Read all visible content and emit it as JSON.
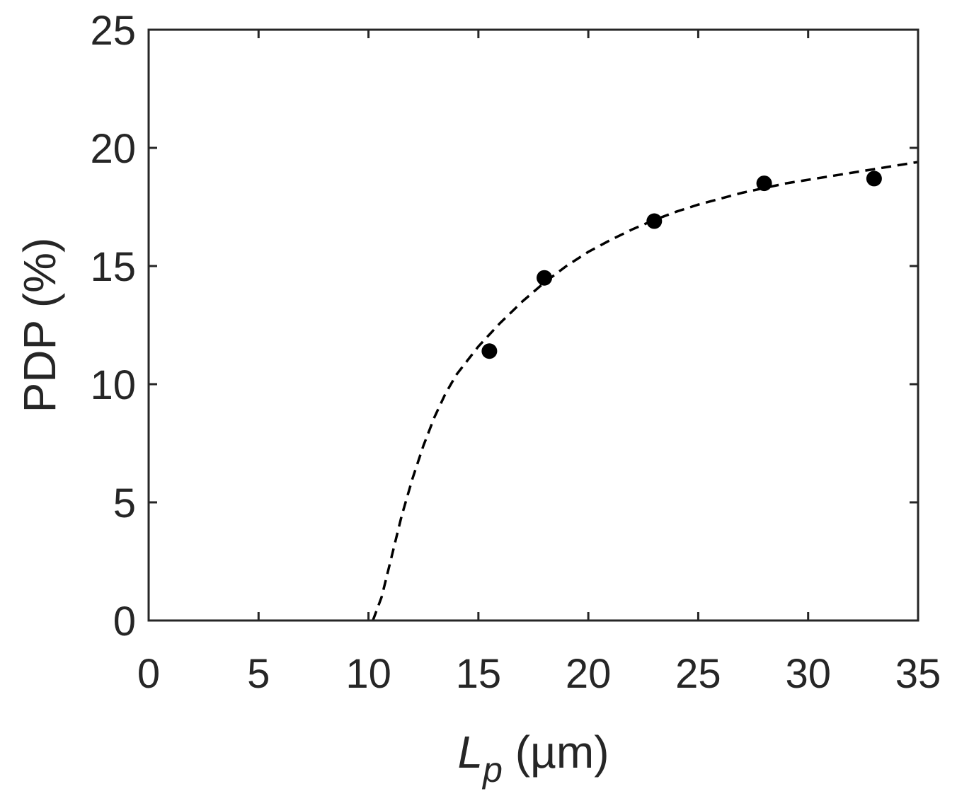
{
  "chart_data": {
    "type": "scatter",
    "xlabel_main": "L",
    "xlabel_sub": "p",
    "xlabel_unit": " (µm)",
    "ylabel": "PDP (%)",
    "xlim": [
      0,
      35
    ],
    "ylim": [
      0,
      25
    ],
    "xticks": [
      0,
      5,
      10,
      15,
      20,
      25,
      30,
      35
    ],
    "yticks": [
      0,
      5,
      10,
      15,
      20,
      25
    ],
    "grid": false,
    "series": [
      {
        "style": "markers",
        "color": "#000000",
        "x": [
          15.5,
          18,
          23,
          28,
          33
        ],
        "y": [
          11.4,
          14.5,
          16.9,
          18.5,
          18.7
        ]
      },
      {
        "style": "dashed-line",
        "color": "#000000",
        "x": [
          10.2,
          10.6,
          11.0,
          11.5,
          12.0,
          12.5,
          13.0,
          13.5,
          14.0,
          14.5,
          15.0,
          16.0,
          17.0,
          18.0,
          19.0,
          20.0,
          21.0,
          22.0,
          23.0,
          24.0,
          25.0,
          26.0,
          27.0,
          28.0,
          29.0,
          30.0,
          31.0,
          32.0,
          33.0,
          34.0,
          35.0
        ],
        "y": [
          0.0,
          1.0,
          2.5,
          4.4,
          6.0,
          7.4,
          8.6,
          9.6,
          10.4,
          11.0,
          11.6,
          12.6,
          13.5,
          14.3,
          15.0,
          15.6,
          16.1,
          16.55,
          16.95,
          17.3,
          17.6,
          17.85,
          18.1,
          18.3,
          18.5,
          18.65,
          18.8,
          18.95,
          19.1,
          19.25,
          19.4
        ]
      }
    ]
  }
}
